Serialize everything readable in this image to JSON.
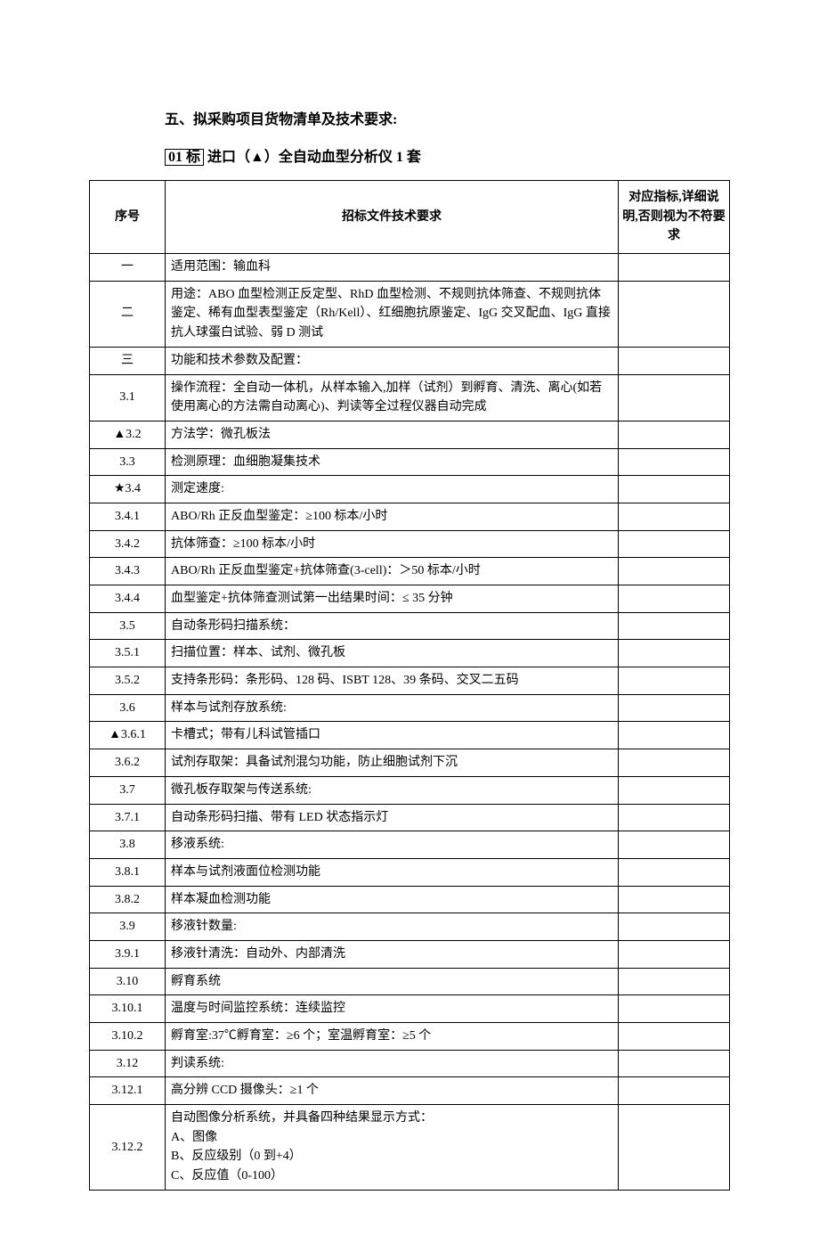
{
  "section_title": "五、拟采购项目货物清单及技术要求:",
  "item_title_prefix": "01 标",
  "item_title_rest": " 进口（▲）全自动血型分析仪 1 套",
  "headers": {
    "seq": "序号",
    "req": "招标文件技术要求",
    "note": "对应指标,详细说明,否则视为不符要求"
  },
  "rows": [
    {
      "seq": "一",
      "req": "适用范围：输血科",
      "note": ""
    },
    {
      "seq": "二",
      "req": "用途：ABO 血型检测正反定型、RhD 血型检测、不规则抗体筛查、不规则抗体鉴定、稀有血型表型鉴定（Rh/Kell）、红细胞抗原鉴定、IgG 交叉配血、IgG 直接抗人球蛋白试验、弱 D 测试",
      "note": ""
    },
    {
      "seq": "三",
      "req": "功能和技术参数及配置：",
      "note": ""
    },
    {
      "seq": "3.1",
      "req": " 操作流程：全自动一体机，从样本输入,加样（试剂）到孵育、清洗、离心(如若使用离心的方法需自动离心)、判读等全过程仪器自动完成",
      "note": ""
    },
    {
      "seq": "▲3.2",
      "req": "方法学：微孔板法",
      "note": ""
    },
    {
      "seq": "3.3",
      "req": "检测原理：血细胞凝集技术",
      "note": ""
    },
    {
      "seq": "★3.4",
      "req": "测定速度:",
      "note": ""
    },
    {
      "seq": "3.4.1",
      "req": "ABO/Rh 正反血型鉴定：≥100 标本/小时",
      "note": ""
    },
    {
      "seq": "3.4.2",
      "req": "抗体筛查：≥100 标本/小时",
      "note": ""
    },
    {
      "seq": "3.4.3",
      "req": "ABO/Rh 正反血型鉴定+抗体筛查(3-cell)：＞50 标本/小时",
      "note": ""
    },
    {
      "seq": "3.4.4",
      "req": "血型鉴定+抗体筛查测试第一出结果时间：≤ 35 分钟",
      "note": ""
    },
    {
      "seq": "3.5",
      "req": "自动条形码扫描系统：",
      "note": ""
    },
    {
      "seq": "3.5.1",
      "req": "扫描位置：样本、试剂、微孔板",
      "note": ""
    },
    {
      "seq": "3.5.2",
      "req": "支持条形码：条形码、128 码、ISBT 128、39 条码、交叉二五码",
      "note": ""
    },
    {
      "seq": "3.6",
      "req": "样本与试剂存放系统:",
      "note": ""
    },
    {
      "seq": "▲3.6.1",
      "req": "卡槽式；带有儿科试管插口",
      "note": ""
    },
    {
      "seq": "3.6.2",
      "req": "试剂存取架：具备试剂混匀功能，防止细胞试剂下沉",
      "note": ""
    },
    {
      "seq": "3.7",
      "req": "微孔板存取架与传送系统:",
      "note": ""
    },
    {
      "seq": "3.7.1",
      "req": "自动条形码扫描、带有 LED 状态指示灯",
      "note": ""
    },
    {
      "seq": "3.8",
      "req": "移液系统:",
      "note": ""
    },
    {
      "seq": "3.8.1",
      "req": "样本与试剂液面位检测功能",
      "note": ""
    },
    {
      "seq": "3.8.2",
      "req": "样本凝血检测功能",
      "note": ""
    },
    {
      "seq": "3.9",
      "req": "移液针数量:",
      "note": ""
    },
    {
      "seq": "3.9.1",
      "req": "移液针清洗：自动外、内部清洗",
      "note": ""
    },
    {
      "seq": "3.10",
      "req": "孵育系统",
      "note": ""
    },
    {
      "seq": "3.10.1",
      "req": "温度与时间监控系统：连续监控",
      "note": ""
    },
    {
      "seq": "3.10.2",
      "req": "孵育室:37℃孵育室：≥6 个；室温孵育室：≥5 个",
      "note": ""
    },
    {
      "seq": "3.12",
      "req": "判读系统:",
      "note": ""
    },
    {
      "seq": "3.12.1",
      "req": "高分辨 CCD 摄像头：≥1 个",
      "note": ""
    },
    {
      "seq": "3.12.2",
      "req": "自动图像分析系统，并具备四种结果显示方式：\nA、图像\nB、反应级别（0 到+4）\nC、反应值（0-100）",
      "note": ""
    }
  ],
  "colors": {
    "text": "#000000",
    "border": "#000000",
    "background": "#ffffff"
  }
}
